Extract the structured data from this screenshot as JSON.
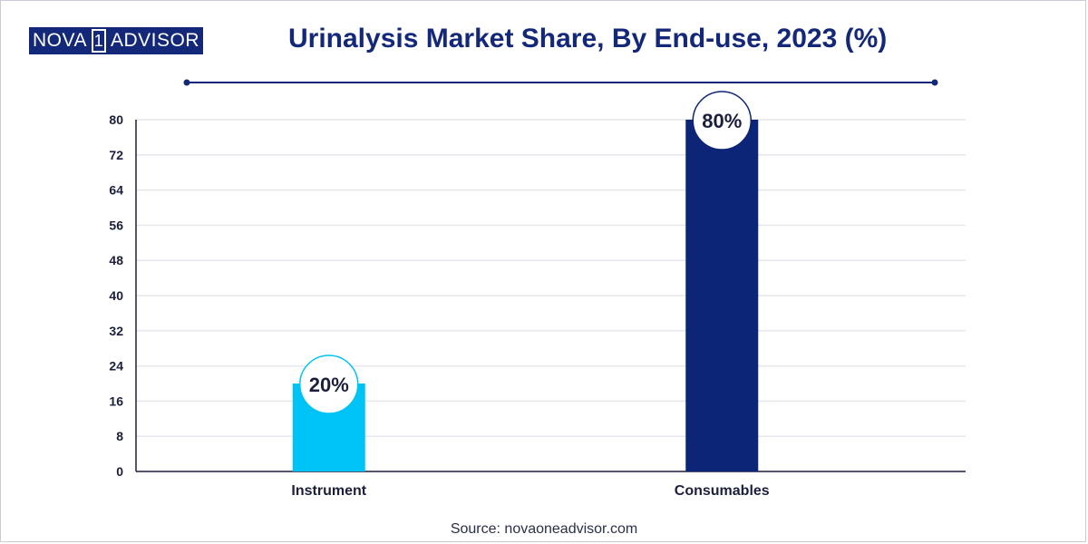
{
  "brand": {
    "logo_left": "NOVA",
    "logo_mid": "1",
    "logo_right": "ADVISOR",
    "logo_bg": "#14287a"
  },
  "title": "Urinalysis Market Share, By End-use, 2023 (%)",
  "source": "Source: novaoneadvisor.com",
  "colors": {
    "title": "#14287a",
    "axis": "#1b1f3b",
    "grid": "#e6e7ec"
  },
  "chart_data": {
    "type": "bar",
    "categories": [
      "Instrument",
      "Consumables"
    ],
    "values": [
      20,
      80
    ],
    "value_labels": [
      "20%",
      "80%"
    ],
    "bar_colors": [
      "#00c3f5",
      "#0d2577"
    ],
    "yticks": [
      0,
      8,
      16,
      24,
      32,
      40,
      48,
      56,
      64,
      72,
      80
    ],
    "ylim": [
      0,
      80
    ],
    "grid": true,
    "legend": "none",
    "title": "Urinalysis Market Share, By End-use, 2023 (%)",
    "xlabel": "",
    "ylabel": ""
  }
}
